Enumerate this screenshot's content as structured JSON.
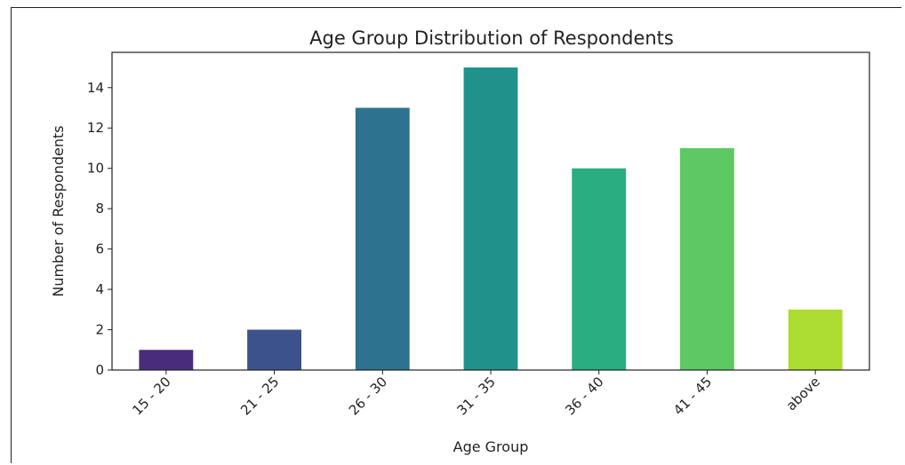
{
  "chart_data": {
    "type": "bar",
    "title": "Age Group Distribution of Respondents",
    "xlabel": "Age Group",
    "ylabel": "Number of Respondents",
    "categories": [
      "15 - 20",
      "21 - 25",
      "26 - 30",
      "31 - 35",
      "36 - 40",
      "41 - 45",
      "above"
    ],
    "values": [
      1,
      2,
      13,
      15,
      10,
      11,
      3
    ],
    "colors": [
      "#472d7b",
      "#3b528b",
      "#2c728e",
      "#21918c",
      "#28ae80",
      "#5ec962",
      "#addc30"
    ],
    "ylim": [
      0,
      15.75
    ],
    "yticks": [
      0,
      2,
      4,
      6,
      8,
      10,
      12,
      14
    ],
    "grid": false,
    "legend": false
  }
}
